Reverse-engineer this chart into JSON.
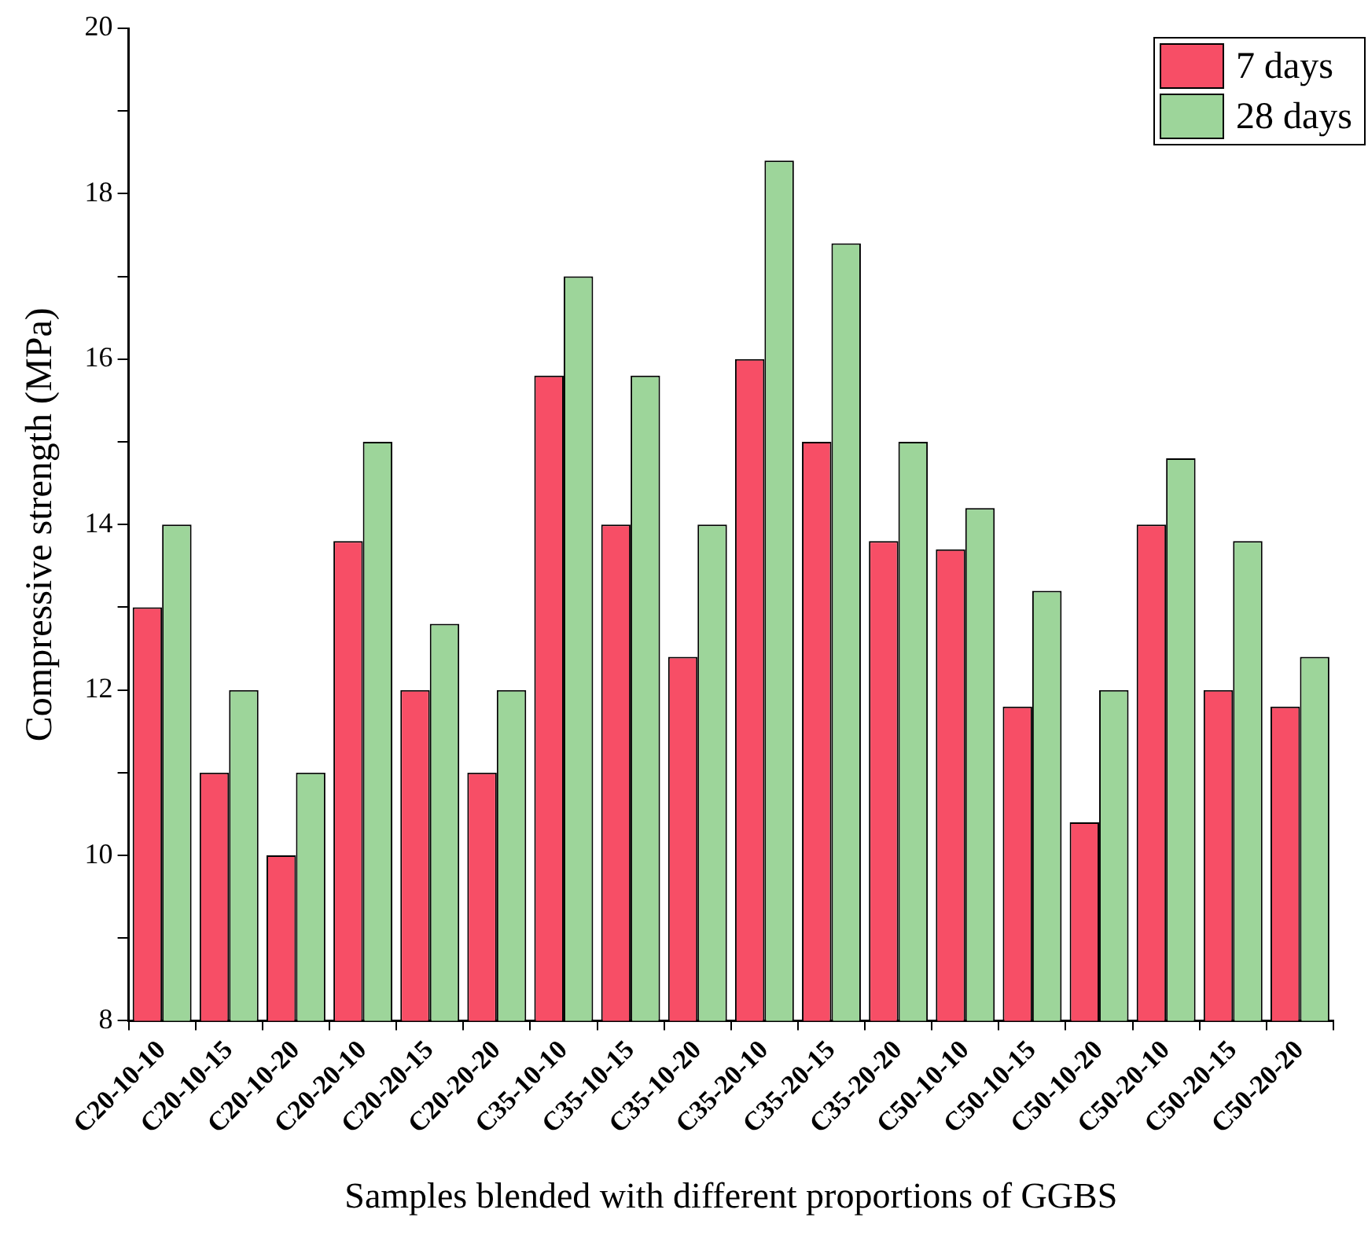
{
  "chart_data": {
    "type": "bar",
    "xlabel": "Samples blended with different proportions of GGBS",
    "ylabel": "Compressive strength (MPa)",
    "categories": [
      "C20-10-10",
      "C20-10-15",
      "C20-10-20",
      "C20-20-10",
      "C20-20-15",
      "C20-20-20",
      "C35-10-10",
      "C35-10-15",
      "C35-10-20",
      "C35-20-10",
      "C35-20-15",
      "C35-20-20",
      "C50-10-10",
      "C50-10-15",
      "C50-10-20",
      "C50-20-10",
      "C50-20-15",
      "C50-20-20"
    ],
    "series": [
      {
        "name": "7 days",
        "color": "#f74e66",
        "values": [
          13,
          11,
          10,
          13.8,
          12,
          11,
          15.8,
          14,
          12.4,
          16,
          15,
          13.8,
          13.7,
          11.8,
          10.4,
          14,
          12,
          11.8
        ]
      },
      {
        "name": "28 days",
        "color": "#9dd59a",
        "values": [
          14,
          12,
          11,
          15,
          12.8,
          12,
          17,
          15.8,
          14,
          18.4,
          17.4,
          15,
          14.2,
          13.2,
          12,
          14.8,
          13.8,
          12.4
        ]
      }
    ],
    "ylim": [
      8,
      20
    ],
    "yticks": [
      8,
      {
        "value": 9,
        "label": null
      },
      10,
      {
        "value": 11,
        "label": null
      },
      12,
      {
        "value": 13,
        "label": null
      },
      14,
      {
        "value": 15,
        "label": null
      },
      16,
      {
        "value": 17,
        "label": null
      },
      18,
      {
        "value": 19,
        "label": null
      },
      20
    ],
    "grid": false,
    "legend": "top right"
  }
}
